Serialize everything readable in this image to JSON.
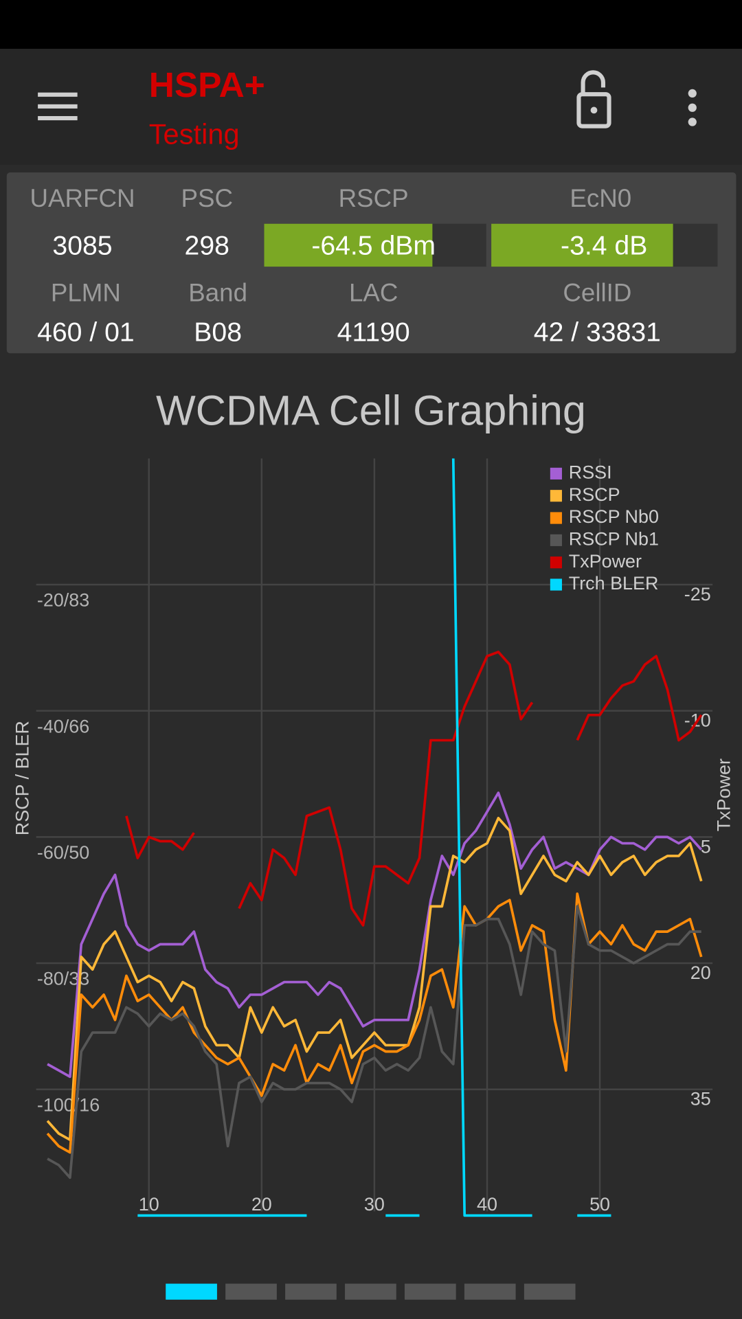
{
  "header": {
    "title": "HSPA+",
    "subtitle": "Testing"
  },
  "stats": {
    "row1": [
      {
        "label": "UARFCN",
        "value": 3085
      },
      {
        "label": "PSC",
        "value": 298
      },
      {
        "label": "RSCP",
        "value": "-64.5 dBm"
      },
      {
        "label": "EcN0",
        "value": "-3.4 dB"
      }
    ],
    "row2": [
      {
        "label": "PLMN",
        "value": "460 / 01"
      },
      {
        "label": "Band",
        "value": "B08"
      },
      {
        "label": "LAC",
        "value": 41190
      },
      {
        "label": "CellID",
        "value": "42 / 33831"
      }
    ]
  },
  "chart_data": {
    "type": "line",
    "title": "WCDMA Cell Graphing",
    "y_label": "RSCP / BLER",
    "y2_label": "TxPower",
    "x": [
      1,
      2,
      3,
      4,
      5,
      6,
      7,
      8,
      9,
      10,
      11,
      12,
      13,
      14,
      15,
      16,
      17,
      18,
      19,
      20,
      21,
      22,
      23,
      24,
      25,
      26,
      27,
      28,
      29,
      30,
      31,
      32,
      33,
      34,
      35,
      36,
      37,
      38,
      39,
      40,
      41,
      42,
      43,
      44,
      45,
      46,
      47,
      48,
      49,
      50,
      51,
      52,
      53,
      54,
      55,
      56,
      57,
      58,
      59
    ],
    "xlim": [
      0,
      60
    ],
    "xticks": [
      10,
      20,
      30,
      40,
      50
    ],
    "ylim": [
      -120,
      0
    ],
    "yticks": [
      {
        "value": -20,
        "label": "-20/83"
      },
      {
        "value": -40,
        "label": "-40/66"
      },
      {
        "value": -60,
        "label": "-60/50"
      },
      {
        "value": -80,
        "label": "-80/33"
      },
      {
        "value": -100,
        "label": "-100/16"
      }
    ],
    "y2lim": [
      50,
      -40
    ],
    "y2ticks": [
      -25,
      -10,
      5,
      20,
      35
    ],
    "y3lim": [
      0,
      100
    ],
    "grid": true,
    "legend": "top-right",
    "series": [
      {
        "name": "RSSI",
        "color": "#a45fd4",
        "values": [
          -96,
          -97,
          -98,
          -77,
          -73,
          -69,
          -66,
          -74,
          -77,
          -78,
          -77,
          -77,
          -77,
          -75,
          -81,
          -83,
          -84,
          -87,
          -85,
          -85,
          -84,
          -83,
          -83,
          -83,
          -85,
          -83,
          -84,
          -87,
          -90,
          -89,
          -89,
          -89,
          -89,
          -81,
          -70,
          -63,
          -66,
          -61,
          -59,
          -56,
          -53,
          -58,
          -65,
          -62,
          -60,
          -65,
          -64,
          -65,
          -66,
          -62,
          -60,
          -61,
          -61,
          -62,
          -60,
          -60,
          -61,
          -60,
          -62
        ]
      },
      {
        "name": "RSCP",
        "color": "#ffb838",
        "values": [
          -105,
          -107,
          -108,
          -79,
          -81,
          -77,
          -75,
          -79,
          -83,
          -82,
          -83,
          -86,
          -83,
          -84,
          -90,
          -93,
          -93,
          -95,
          -87,
          -91,
          -87,
          -90,
          -89,
          -94,
          -91,
          -91,
          -89,
          -95,
          -93,
          -91,
          -93,
          -93,
          -93,
          -87,
          -71,
          -71,
          -63,
          -64,
          -62,
          -61,
          -57,
          -59,
          -69,
          -66,
          -63,
          -66,
          -67,
          -64,
          -66,
          -63,
          -66,
          -64,
          -63,
          -66,
          -64,
          -63,
          -63,
          -61,
          -67
        ]
      },
      {
        "name": "RSCP Nb0",
        "color": "#ff8c0a",
        "values": [
          -107,
          -109,
          -110,
          -85,
          -87,
          -85,
          -89,
          -82,
          -86,
          -85,
          -87,
          -89,
          -87,
          -91,
          -93,
          -95,
          -96,
          -95,
          -98,
          -101,
          -96,
          -97,
          -93,
          -99,
          -96,
          -97,
          -93,
          -99,
          -94,
          -93,
          -94,
          -94,
          -93,
          -89,
          -82,
          -81,
          -87,
          -71,
          -74,
          -73,
          -71,
          -70,
          -78,
          -74,
          -75,
          -89,
          -97,
          -69,
          -77,
          -75,
          -77,
          -74,
          -77,
          -78,
          -75,
          -75,
          -74,
          -73,
          -79
        ]
      },
      {
        "name": "RSCP Nb1",
        "color": "#575757",
        "values": [
          -111,
          -112,
          -114,
          -94,
          -91,
          -91,
          -91,
          -87,
          -88,
          -90,
          -88,
          -89,
          -88,
          -90,
          -94,
          -96,
          -109,
          -99,
          -98,
          -102,
          -99,
          -100,
          -100,
          -99,
          -99,
          -99,
          -100,
          -102,
          -96,
          -95,
          -97,
          -96,
          -97,
          -95,
          -87,
          -94,
          -96,
          -74,
          -74,
          -73,
          -73,
          -77,
          -85,
          -75,
          -77,
          -78,
          -94,
          -71,
          -77,
          -78,
          -78,
          -79,
          -80,
          -79,
          -78,
          -77,
          -77,
          -75,
          -75
        ]
      },
      {
        "name": "TxPower",
        "color": "#d00000",
        "axis": "y2",
        "values": [
          null,
          null,
          null,
          null,
          null,
          null,
          null,
          2.5,
          7.5,
          5,
          5.5,
          5.5,
          6.5,
          4.5,
          null,
          null,
          null,
          13.5,
          10.5,
          12.5,
          6.5,
          7.5,
          9.5,
          2.5,
          2,
          1.5,
          6.5,
          13.5,
          15.5,
          8.5,
          8.5,
          9.5,
          10.5,
          7.5,
          -6.5,
          -6.5,
          -6.5,
          -10.5,
          -13.5,
          -16.5,
          -17,
          -15.5,
          -9,
          -11,
          null,
          null,
          null,
          -6.5,
          -9.5,
          -9.5,
          -11.5,
          -13,
          -13.5,
          -15.5,
          -16.5,
          -12.5,
          -6.5,
          -7.5,
          -9.5
        ]
      },
      {
        "name": "Trch BLER",
        "color": "#00d8ff",
        "axis": "y3",
        "values": [
          null,
          null,
          null,
          null,
          null,
          null,
          null,
          null,
          0,
          0,
          0,
          0,
          0,
          0,
          0,
          0,
          0,
          0,
          0,
          0,
          0,
          0,
          0,
          0,
          null,
          null,
          null,
          null,
          null,
          null,
          0,
          0,
          0,
          0,
          null,
          null,
          100,
          0,
          0,
          0,
          0,
          0,
          0,
          0,
          null,
          null,
          null,
          0,
          0,
          0,
          0,
          null,
          null,
          null,
          null,
          null,
          null,
          null,
          null
        ]
      }
    ]
  }
}
